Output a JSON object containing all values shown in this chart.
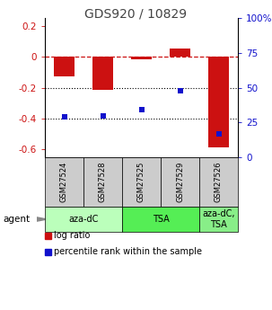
{
  "title": "GDS920 / 10829",
  "samples": [
    "GSM27524",
    "GSM27528",
    "GSM27525",
    "GSM27529",
    "GSM27526"
  ],
  "log_ratios": [
    -0.13,
    -0.215,
    -0.02,
    0.05,
    -0.585
  ],
  "percentile_ranks": [
    29,
    30,
    34,
    48,
    17
  ],
  "left_ylim": [
    -0.65,
    0.25
  ],
  "right_ylim": [
    0,
    100
  ],
  "left_yticks": [
    0.2,
    0.0,
    -0.2,
    -0.4,
    -0.6
  ],
  "right_yticks": [
    100,
    75,
    50,
    25,
    0
  ],
  "bar_color": "#cc1111",
  "dot_color": "#1111cc",
  "groups": [
    {
      "label": "aza-dC",
      "start": 0,
      "end": 2,
      "color": "#bbffbb"
    },
    {
      "label": "TSA",
      "start": 2,
      "end": 4,
      "color": "#55ee55"
    },
    {
      "label": "aza-dC,\nTSA",
      "start": 4,
      "end": 5,
      "color": "#88ee88"
    }
  ],
  "agent_label": "agent",
  "legend_items": [
    {
      "color": "#cc1111",
      "label": "log ratio"
    },
    {
      "color": "#1111cc",
      "label": "percentile rank within the sample"
    }
  ],
  "hline_color": "#cc1111",
  "dotline_color": "#000000",
  "title_fontsize": 10,
  "tick_fontsize": 7.5,
  "sample_fontsize": 6,
  "group_fontsize": 7,
  "legend_fontsize": 7
}
